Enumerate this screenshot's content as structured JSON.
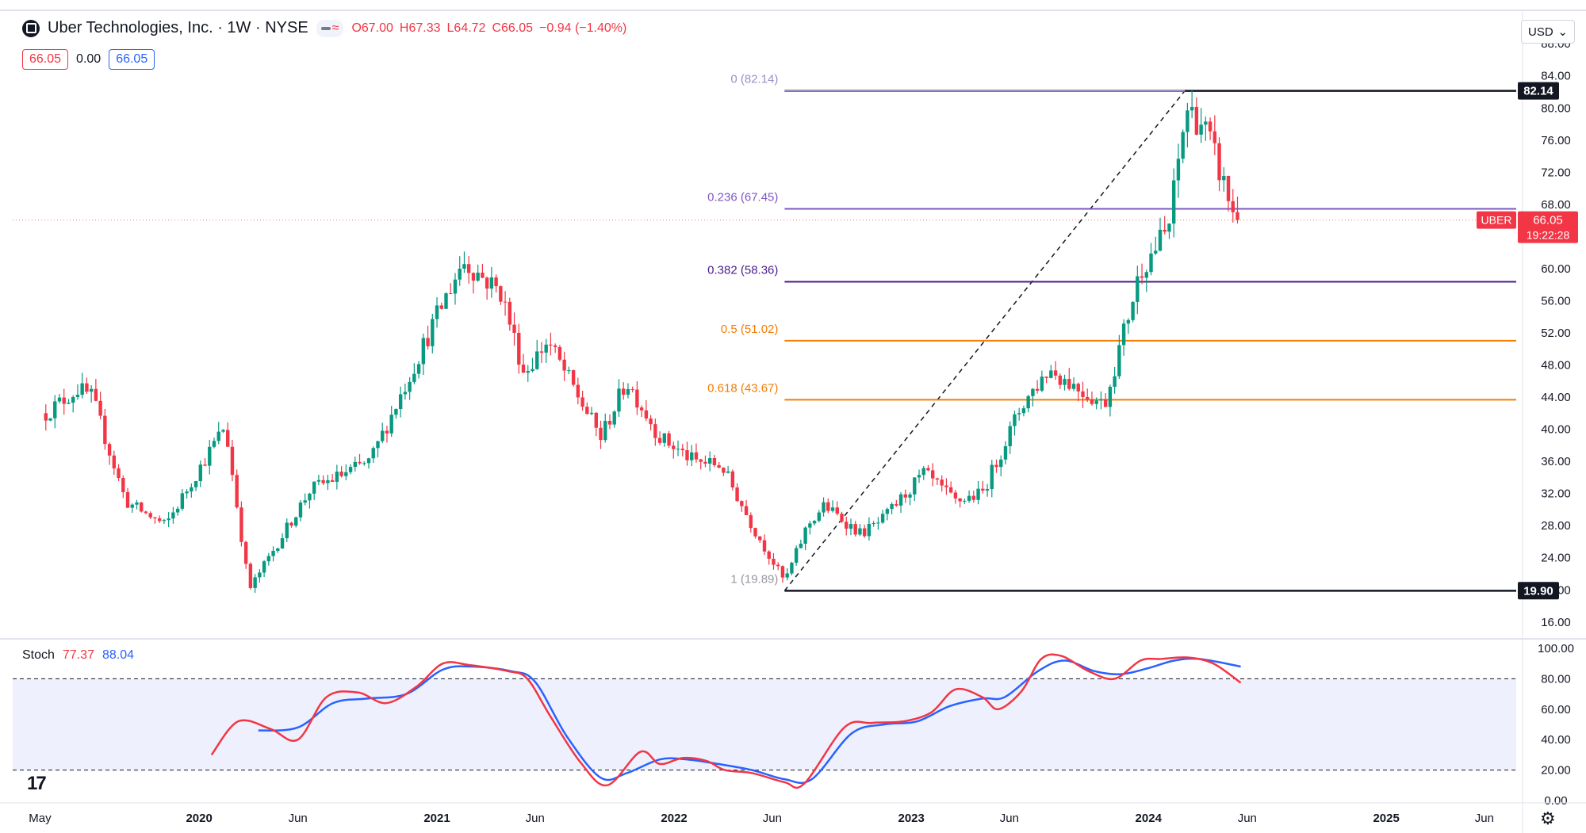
{
  "header": {
    "symbol_title": "Uber Technologies, Inc. · 1W · NYSE",
    "open": "O67.00",
    "high": "H67.33",
    "low": "L64.72",
    "close": "C66.05",
    "change": "−0.94 (−1.40%)",
    "bid": "66.05",
    "spread": "0.00",
    "ask": "66.05",
    "currency": "USD"
  },
  "price_tag": {
    "symbol": "UBER",
    "price": "66.05",
    "countdown": "19:22:28"
  },
  "stoch": {
    "label": "Stoch",
    "k_value": "77.37",
    "d_value": "88.04"
  },
  "chart_data": {
    "type": "candlestick",
    "title": "Uber Technologies, Inc. · 1W · NYSE",
    "ylim": [
      14.5,
      89.5
    ],
    "y_ticks": [
      "88.00",
      "84.00",
      "80.00",
      "76.00",
      "72.00",
      "68.00",
      "64.00",
      "60.00",
      "56.00",
      "52.00",
      "48.00",
      "44.00",
      "40.00",
      "36.00",
      "32.00",
      "28.00",
      "24.00",
      "20.00",
      "16.00"
    ],
    "x_ticks": [
      "May",
      "2020",
      "Jun",
      "2021",
      "Jun",
      "2022",
      "Jun",
      "2023",
      "Jun",
      "2024",
      "Jun",
      "2025",
      "Jun"
    ],
    "price_anchors": [
      {
        "date": "2019-05-10",
        "value": 42.0
      },
      {
        "date": "2019-06-28",
        "value": 45.0
      },
      {
        "date": "2019-07-20",
        "value": 44.0
      },
      {
        "date": "2019-09-10",
        "value": 31.0
      },
      {
        "date": "2019-11-10",
        "value": 28.0
      },
      {
        "date": "2020-02-10",
        "value": 40.5
      },
      {
        "date": "2020-03-18",
        "value": 20.0
      },
      {
        "date": "2020-06-20",
        "value": 32.5
      },
      {
        "date": "2020-09-20",
        "value": 36.0
      },
      {
        "date": "2020-12-20",
        "value": 52.0
      },
      {
        "date": "2021-02-10",
        "value": 61.0
      },
      {
        "date": "2021-04-10",
        "value": 57.0
      },
      {
        "date": "2021-05-15",
        "value": 47.0
      },
      {
        "date": "2021-06-20",
        "value": 51.0
      },
      {
        "date": "2021-09-10",
        "value": 39.0
      },
      {
        "date": "2021-10-20",
        "value": 46.0
      },
      {
        "date": "2021-12-10",
        "value": 39.0
      },
      {
        "date": "2022-02-01",
        "value": 36.0
      },
      {
        "date": "2022-03-15",
        "value": 35.5
      },
      {
        "date": "2022-05-01",
        "value": 28.0
      },
      {
        "date": "2022-06-20",
        "value": 21.0
      },
      {
        "date": "2022-07-25",
        "value": 28.0
      },
      {
        "date": "2022-08-20",
        "value": 30.5
      },
      {
        "date": "2022-10-15",
        "value": 27.0
      },
      {
        "date": "2022-11-15",
        "value": 28.5
      },
      {
        "date": "2023-01-20",
        "value": 34.5
      },
      {
        "date": "2023-03-10",
        "value": 31.0
      },
      {
        "date": "2023-04-20",
        "value": 32.0
      },
      {
        "date": "2023-06-20",
        "value": 43.0
      },
      {
        "date": "2023-08-01",
        "value": 47.5
      },
      {
        "date": "2023-10-25",
        "value": 43.0
      },
      {
        "date": "2023-12-20",
        "value": 60.0
      },
      {
        "date": "2024-02-01",
        "value": 65.0
      },
      {
        "date": "2024-02-28",
        "value": 80.0
      },
      {
        "date": "2024-03-25",
        "value": 78.0
      },
      {
        "date": "2024-04-20",
        "value": 72.0
      },
      {
        "date": "2024-05-10",
        "value": 67.0
      },
      {
        "date": "2024-05-22",
        "value": 66.05
      }
    ],
    "fib_levels": [
      {
        "label": "0 (82.14)",
        "value": 82.14,
        "color": "#9c8fc8"
      },
      {
        "label": "0.236 (67.45)",
        "value": 67.45,
        "color": "#7e57c2"
      },
      {
        "label": "0.382 (58.36)",
        "value": 58.36,
        "color": "#4a1d8a"
      },
      {
        "label": "0.5 (51.02)",
        "value": 51.02,
        "color": "#f57c00"
      },
      {
        "label": "0.618 (43.67)",
        "value": 43.67,
        "color": "#f57c00"
      },
      {
        "label": "1 (19.89)",
        "value": 19.89,
        "color": "#9598a1"
      }
    ],
    "fib_range": {
      "start_date": "2022-06-20",
      "start_value": 19.9,
      "end_date": "2024-02-26",
      "end_value": 82.14
    },
    "axis_tags": [
      {
        "label": "82.14",
        "value": 82.14
      },
      {
        "label": "19.90",
        "value": 19.9
      }
    ],
    "stoch": {
      "ylim": [
        0,
        100
      ],
      "y_ticks": [
        "100.00",
        "80.00",
        "60.00",
        "40.00",
        "20.00",
        "0.00"
      ],
      "band": [
        20,
        80
      ],
      "k_series": [
        {
          "date": "2020-01-20",
          "value": 30
        },
        {
          "date": "2020-03-01",
          "value": 52
        },
        {
          "date": "2020-04-20",
          "value": 47
        },
        {
          "date": "2020-06-01",
          "value": 40
        },
        {
          "date": "2020-07-15",
          "value": 68
        },
        {
          "date": "2020-09-01",
          "value": 71
        },
        {
          "date": "2020-10-15",
          "value": 64
        },
        {
          "date": "2020-12-01",
          "value": 75
        },
        {
          "date": "2021-01-10",
          "value": 90
        },
        {
          "date": "2021-02-20",
          "value": 89
        },
        {
          "date": "2021-04-20",
          "value": 85
        },
        {
          "date": "2021-05-20",
          "value": 80
        },
        {
          "date": "2021-06-25",
          "value": 55
        },
        {
          "date": "2021-08-10",
          "value": 25
        },
        {
          "date": "2021-09-20",
          "value": 10
        },
        {
          "date": "2021-11-10",
          "value": 32
        },
        {
          "date": "2021-12-10",
          "value": 24
        },
        {
          "date": "2022-01-15",
          "value": 28
        },
        {
          "date": "2022-02-20",
          "value": 26
        },
        {
          "date": "2022-03-20",
          "value": 20
        },
        {
          "date": "2022-05-01",
          "value": 18
        },
        {
          "date": "2022-06-20",
          "value": 12
        },
        {
          "date": "2022-07-20",
          "value": 11
        },
        {
          "date": "2022-09-20",
          "value": 48
        },
        {
          "date": "2022-11-01",
          "value": 51
        },
        {
          "date": "2022-12-20",
          "value": 52
        },
        {
          "date": "2023-02-01",
          "value": 58
        },
        {
          "date": "2023-03-10",
          "value": 73
        },
        {
          "date": "2023-04-20",
          "value": 68
        },
        {
          "date": "2023-05-15",
          "value": 60
        },
        {
          "date": "2023-06-20",
          "value": 72
        },
        {
          "date": "2023-07-20",
          "value": 93
        },
        {
          "date": "2023-08-20",
          "value": 95
        },
        {
          "date": "2023-10-01",
          "value": 85
        },
        {
          "date": "2023-11-10",
          "value": 80
        },
        {
          "date": "2023-12-20",
          "value": 92
        },
        {
          "date": "2024-01-20",
          "value": 93
        },
        {
          "date": "2024-03-01",
          "value": 94
        },
        {
          "date": "2024-04-10",
          "value": 90
        },
        {
          "date": "2024-05-22",
          "value": 77.37
        }
      ],
      "d_series": [
        {
          "date": "2020-04-01",
          "value": 46
        },
        {
          "date": "2020-06-01",
          "value": 48
        },
        {
          "date": "2020-07-25",
          "value": 64
        },
        {
          "date": "2020-09-15",
          "value": 67
        },
        {
          "date": "2020-11-15",
          "value": 70
        },
        {
          "date": "2021-01-10",
          "value": 86
        },
        {
          "date": "2021-02-25",
          "value": 88
        },
        {
          "date": "2021-04-25",
          "value": 85
        },
        {
          "date": "2021-06-01",
          "value": 78
        },
        {
          "date": "2021-07-20",
          "value": 42
        },
        {
          "date": "2021-09-10",
          "value": 15
        },
        {
          "date": "2021-10-20",
          "value": 18
        },
        {
          "date": "2021-12-10",
          "value": 27
        },
        {
          "date": "2022-01-20",
          "value": 27
        },
        {
          "date": "2022-03-10",
          "value": 24
        },
        {
          "date": "2022-05-01",
          "value": 20
        },
        {
          "date": "2022-06-20",
          "value": 14
        },
        {
          "date": "2022-08-01",
          "value": 14
        },
        {
          "date": "2022-10-01",
          "value": 44
        },
        {
          "date": "2022-11-20",
          "value": 50
        },
        {
          "date": "2023-01-10",
          "value": 52
        },
        {
          "date": "2023-03-01",
          "value": 62
        },
        {
          "date": "2023-04-20",
          "value": 67
        },
        {
          "date": "2023-05-25",
          "value": 68
        },
        {
          "date": "2023-07-15",
          "value": 85
        },
        {
          "date": "2023-08-25",
          "value": 92
        },
        {
          "date": "2023-10-10",
          "value": 85
        },
        {
          "date": "2023-11-20",
          "value": 83
        },
        {
          "date": "2024-01-01",
          "value": 87
        },
        {
          "date": "2024-02-10",
          "value": 92
        },
        {
          "date": "2024-03-20",
          "value": 93
        },
        {
          "date": "2024-05-22",
          "value": 88.04
        }
      ]
    }
  },
  "colors": {
    "up": "#089981",
    "down": "#f23645",
    "k_line": "#f23645",
    "d_line": "#2962ff",
    "band_fill": "#eef1fd"
  }
}
